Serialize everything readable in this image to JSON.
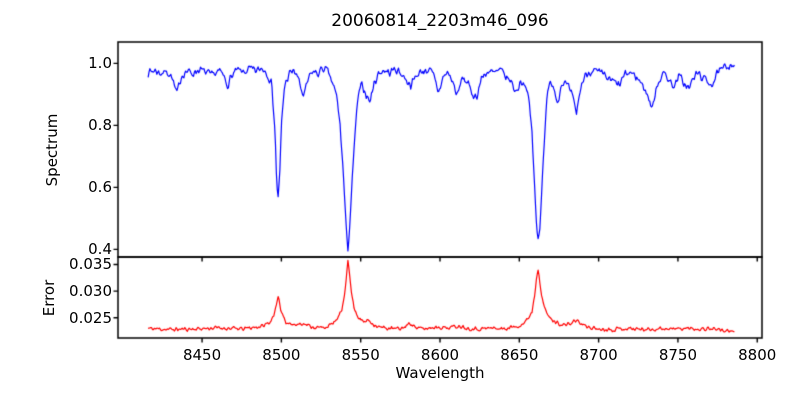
{
  "title": "20060814_2203m46_096",
  "colors": {
    "spectrum_line": "#0000ff",
    "error_line": "#ff0000",
    "axes": "#000000",
    "background": "#ffffff"
  },
  "chart_data": {
    "type": "line",
    "title": "20060814_2203m46_096",
    "xlabel": "Wavelength",
    "xlim": [
      8397,
      8803
    ],
    "xticks": [
      {
        "v": 8450,
        "label": "8450"
      },
      {
        "v": 8500,
        "label": "8500"
      },
      {
        "v": 8550,
        "label": "8550"
      },
      {
        "v": 8600,
        "label": "8600"
      },
      {
        "v": 8650,
        "label": "8650"
      },
      {
        "v": 8700,
        "label": "8700"
      },
      {
        "v": 8750,
        "label": "8750"
      },
      {
        "v": 8800,
        "label": "8800"
      }
    ],
    "x_start": 8416,
    "x_end": 8786,
    "step": 0.55,
    "grid": false,
    "legend": "none",
    "features": {
      "absorption_lines": [
        {
          "wavelength": 8498,
          "spectrum_min": 0.565,
          "error_peak": 0.0287
        },
        {
          "wavelength": 8542,
          "spectrum_min": 0.405,
          "error_peak": 0.0357
        },
        {
          "wavelength": 8662,
          "spectrum_min": 0.43,
          "error_peak": 0.0344
        }
      ]
    },
    "panels": [
      {
        "name": "spectrum",
        "ylabel": "Spectrum",
        "ylim": [
          0.3755,
          1.069
        ],
        "yticks": [
          {
            "v": 1.0,
            "label": "1.0"
          },
          {
            "v": 0.8,
            "label": "0.8"
          },
          {
            "v": 0.6,
            "label": "0.6"
          },
          {
            "v": 0.4,
            "label": "0.4"
          }
        ],
        "series": {
          "name": "spectrum",
          "color": "#0000ff",
          "noise_amp": 0.016,
          "seed": 7,
          "anchors": [
            [
              8416,
              0.97
            ],
            [
              8420,
              0.978
            ],
            [
              8424,
              0.968
            ],
            [
              8428,
              0.975
            ],
            [
              8431,
              0.955
            ],
            [
              8434,
              0.9
            ],
            [
              8437,
              0.96
            ],
            [
              8440,
              0.975
            ],
            [
              8444,
              0.968
            ],
            [
              8448,
              0.98
            ],
            [
              8452,
              0.972
            ],
            [
              8456,
              0.96
            ],
            [
              8460,
              0.975
            ],
            [
              8463,
              0.965
            ],
            [
              8466,
              0.93
            ],
            [
              8469,
              0.962
            ],
            [
              8472,
              0.978
            ],
            [
              8476,
              0.97
            ],
            [
              8480,
              0.982
            ],
            [
              8484,
              0.975
            ],
            [
              8488,
              0.985
            ],
            [
              8491,
              0.97
            ],
            [
              8494,
              0.93
            ],
            [
              8496,
              0.78
            ],
            [
              8497,
              0.62
            ],
            [
              8498,
              0.565
            ],
            [
              8499,
              0.64
            ],
            [
              8500,
              0.8
            ],
            [
              8502,
              0.93
            ],
            [
              8505,
              0.965
            ],
            [
              8508,
              0.978
            ],
            [
              8511,
              0.945
            ],
            [
              8514,
              0.89
            ],
            [
              8517,
              0.95
            ],
            [
              8520,
              0.975
            ],
            [
              8523,
              0.965
            ],
            [
              8526,
              0.985
            ],
            [
              8529,
              0.975
            ],
            [
              8532,
              0.94
            ],
            [
              8535,
              0.89
            ],
            [
              8537,
              0.8
            ],
            [
              8539,
              0.65
            ],
            [
              8541,
              0.45
            ],
            [
              8542,
              0.405
            ],
            [
              8543,
              0.47
            ],
            [
              8545,
              0.65
            ],
            [
              8547,
              0.82
            ],
            [
              8549,
              0.91
            ],
            [
              8551,
              0.93
            ],
            [
              8553,
              0.905
            ],
            [
              8556,
              0.875
            ],
            [
              8558,
              0.93
            ],
            [
              8561,
              0.965
            ],
            [
              8564,
              0.978
            ],
            [
              8568,
              0.97
            ],
            [
              8572,
              0.982
            ],
            [
              8576,
              0.965
            ],
            [
              8579,
              0.945
            ],
            [
              8582,
              0.93
            ],
            [
              8585,
              0.962
            ],
            [
              8589,
              0.975
            ],
            [
              8593,
              0.98
            ],
            [
              8596,
              0.96
            ],
            [
              8599,
              0.906
            ],
            [
              8602,
              0.955
            ],
            [
              8605,
              0.972
            ],
            [
              8608,
              0.94
            ],
            [
              8611,
              0.894
            ],
            [
              8614,
              0.955
            ],
            [
              8617,
              0.94
            ],
            [
              8620,
              0.905
            ],
            [
              8623,
              0.89
            ],
            [
              8626,
              0.95
            ],
            [
              8630,
              0.975
            ],
            [
              8634,
              0.968
            ],
            [
              8638,
              0.978
            ],
            [
              8641,
              0.96
            ],
            [
              8645,
              0.94
            ],
            [
              8648,
              0.906
            ],
            [
              8651,
              0.945
            ],
            [
              8654,
              0.93
            ],
            [
              8656,
              0.88
            ],
            [
              8658,
              0.78
            ],
            [
              8660,
              0.56
            ],
            [
              8661,
              0.46
            ],
            [
              8662,
              0.43
            ],
            [
              8663,
              0.48
            ],
            [
              8665,
              0.68
            ],
            [
              8667,
              0.87
            ],
            [
              8669,
              0.93
            ],
            [
              8671,
              0.94
            ],
            [
              8674,
              0.875
            ],
            [
              8677,
              0.94
            ],
            [
              8680,
              0.93
            ],
            [
              8683,
              0.9
            ],
            [
              8686,
              0.84
            ],
            [
              8689,
              0.93
            ],
            [
              8692,
              0.965
            ],
            [
              8696,
              0.978
            ],
            [
              8700,
              0.97
            ],
            [
              8704,
              0.96
            ],
            [
              8707,
              0.945
            ],
            [
              8710,
              0.94
            ],
            [
              8713,
              0.928
            ],
            [
              8716,
              0.96
            ],
            [
              8720,
              0.972
            ],
            [
              8724,
              0.955
            ],
            [
              8728,
              0.93
            ],
            [
              8731,
              0.895
            ],
            [
              8734,
              0.85
            ],
            [
              8736,
              0.92
            ],
            [
              8739,
              0.955
            ],
            [
              8742,
              0.968
            ],
            [
              8745,
              0.94
            ],
            [
              8748,
              0.928
            ],
            [
              8751,
              0.96
            ],
            [
              8754,
              0.935
            ],
            [
              8757,
              0.918
            ],
            [
              8760,
              0.955
            ],
            [
              8763,
              0.97
            ],
            [
              8766,
              0.95
            ],
            [
              8769,
              0.94
            ],
            [
              8772,
              0.935
            ],
            [
              8775,
              0.968
            ],
            [
              8778,
              0.98
            ],
            [
              8781,
              0.992
            ],
            [
              8784,
              1.0
            ],
            [
              8786,
              0.99
            ]
          ]
        }
      },
      {
        "name": "error",
        "ylabel": "Error",
        "ylim": [
          0.0212,
          0.0364
        ],
        "yticks": [
          {
            "v": 0.035,
            "label": "0.035"
          },
          {
            "v": 0.03,
            "label": "0.030"
          },
          {
            "v": 0.025,
            "label": "0.025"
          }
        ],
        "series": {
          "name": "error",
          "color": "#ff0000",
          "noise_amp": 0.00045,
          "seed": 11,
          "anchors": [
            [
              8416,
              0.023
            ],
            [
              8430,
              0.0228
            ],
            [
              8445,
              0.0229
            ],
            [
              8460,
              0.0231
            ],
            [
              8475,
              0.0229
            ],
            [
              8488,
              0.0234
            ],
            [
              8493,
              0.0242
            ],
            [
              8496,
              0.0262
            ],
            [
              8498,
              0.0287
            ],
            [
              8500,
              0.0262
            ],
            [
              8503,
              0.0242
            ],
            [
              8508,
              0.0236
            ],
            [
              8513,
              0.024
            ],
            [
              8518,
              0.0234
            ],
            [
              8524,
              0.0231
            ],
            [
              8530,
              0.0234
            ],
            [
              8535,
              0.0246
            ],
            [
              8538,
              0.0262
            ],
            [
              8540,
              0.03
            ],
            [
              8541,
              0.033
            ],
            [
              8542,
              0.0357
            ],
            [
              8543,
              0.0332
            ],
            [
              8544,
              0.03
            ],
            [
              8546,
              0.0268
            ],
            [
              8549,
              0.0248
            ],
            [
              8552,
              0.0242
            ],
            [
              8555,
              0.0246
            ],
            [
              8558,
              0.0238
            ],
            [
              8562,
              0.0232
            ],
            [
              8568,
              0.023
            ],
            [
              8575,
              0.0229
            ],
            [
              8582,
              0.024
            ],
            [
              8585,
              0.0231
            ],
            [
              8590,
              0.0229
            ],
            [
              8598,
              0.0233
            ],
            [
              8605,
              0.0231
            ],
            [
              8612,
              0.0235
            ],
            [
              8618,
              0.023
            ],
            [
              8625,
              0.0229
            ],
            [
              8633,
              0.0231
            ],
            [
              8640,
              0.0229
            ],
            [
              8647,
              0.0233
            ],
            [
              8652,
              0.0238
            ],
            [
              8655,
              0.0246
            ],
            [
              8658,
              0.0262
            ],
            [
              8660,
              0.03
            ],
            [
              8661,
              0.033
            ],
            [
              8662,
              0.0344
            ],
            [
              8663,
              0.0318
            ],
            [
              8664,
              0.0295
            ],
            [
              8666,
              0.0266
            ],
            [
              8669,
              0.025
            ],
            [
              8672,
              0.0243
            ],
            [
              8676,
              0.0238
            ],
            [
              8680,
              0.0236
            ],
            [
              8684,
              0.0242
            ],
            [
              8686,
              0.0246
            ],
            [
              8689,
              0.0238
            ],
            [
              8694,
              0.0232
            ],
            [
              8700,
              0.0229
            ],
            [
              8708,
              0.0228
            ],
            [
              8716,
              0.023
            ],
            [
              8724,
              0.0229
            ],
            [
              8732,
              0.0228
            ],
            [
              8740,
              0.023
            ],
            [
              8748,
              0.0229
            ],
            [
              8756,
              0.023
            ],
            [
              8764,
              0.0229
            ],
            [
              8772,
              0.023
            ],
            [
              8779,
              0.0226
            ],
            [
              8786,
              0.0222
            ]
          ]
        }
      }
    ]
  }
}
